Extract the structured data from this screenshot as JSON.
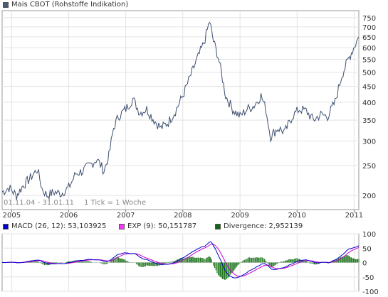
{
  "chart_data": [
    {
      "type": "line",
      "title": "Mais CBOT (Rohstoffe Indikation)",
      "title_swatch_color": "#4a5a7a",
      "line_color": "#3d4f70",
      "y_scale": "log",
      "ylim": [
        180,
        790
      ],
      "y_ticks": [
        200,
        250,
        300,
        350,
        400,
        450,
        500,
        550,
        600,
        650,
        700,
        750
      ],
      "x_ticks": [
        "2005",
        "2006",
        "2007",
        "2008",
        "2009",
        "2010",
        "2011"
      ],
      "xlim": [
        "2004-11-01",
        "2011-01-31"
      ],
      "grid": true,
      "note_range": "01.11.04 - 31.01.11",
      "note_tick": "1 Tick = 1 Woche",
      "x": [
        "2004-11-01",
        "2004-12-15",
        "2005-02-01",
        "2005-03-15",
        "2005-05-01",
        "2005-06-15",
        "2005-07-15",
        "2005-08-15",
        "2005-10-01",
        "2005-11-15",
        "2006-01-01",
        "2006-02-15",
        "2006-04-01",
        "2006-05-15",
        "2006-07-01",
        "2006-08-15",
        "2006-09-15",
        "2006-10-15",
        "2006-11-15",
        "2007-01-01",
        "2007-02-15",
        "2007-04-01",
        "2007-05-15",
        "2007-07-01",
        "2007-08-15",
        "2007-10-01",
        "2007-11-15",
        "2008-01-01",
        "2008-02-15",
        "2008-04-01",
        "2008-05-15",
        "2008-06-20",
        "2008-07-15",
        "2008-08-15",
        "2008-10-01",
        "2008-11-15",
        "2009-01-01",
        "2009-02-15",
        "2009-04-01",
        "2009-05-15",
        "2009-06-15",
        "2009-07-15",
        "2009-09-01",
        "2009-10-15",
        "2009-12-01",
        "2010-01-15",
        "2010-03-01",
        "2010-04-15",
        "2010-06-01",
        "2010-07-15",
        "2010-09-01",
        "2010-10-15",
        "2010-12-01",
        "2011-01-31"
      ],
      "values": [
        205,
        212,
        200,
        215,
        228,
        243,
        210,
        200,
        205,
        203,
        212,
        235,
        240,
        250,
        262,
        240,
        268,
        330,
        360,
        380,
        410,
        370,
        380,
        350,
        330,
        345,
        375,
        420,
        480,
        550,
        620,
        730,
        630,
        560,
        420,
        380,
        360,
        380,
        390,
        420,
        380,
        310,
        330,
        320,
        360,
        380,
        375,
        350,
        365,
        360,
        400,
        490,
        560,
        650
      ]
    },
    {
      "type": "line",
      "title": "MACD",
      "series": [
        {
          "name": "MACD (26, 12): 53,103925",
          "color": "#0000cc",
          "swatch": "#0000cc"
        },
        {
          "name": "EXP (9): 50,151787",
          "color": "#cc00cc",
          "swatch": "#ff33ff"
        },
        {
          "name": "Divergence: 2,952139",
          "color": "#227722",
          "swatch": "#116611"
        }
      ],
      "ylim": [
        -100,
        100
      ],
      "y_ticks": [
        100,
        50,
        0,
        -50,
        -100
      ],
      "x_ticks": [
        "2005",
        "2006",
        "2007",
        "2008",
        "2009",
        "2010",
        "2011"
      ],
      "grid": true
    }
  ]
}
